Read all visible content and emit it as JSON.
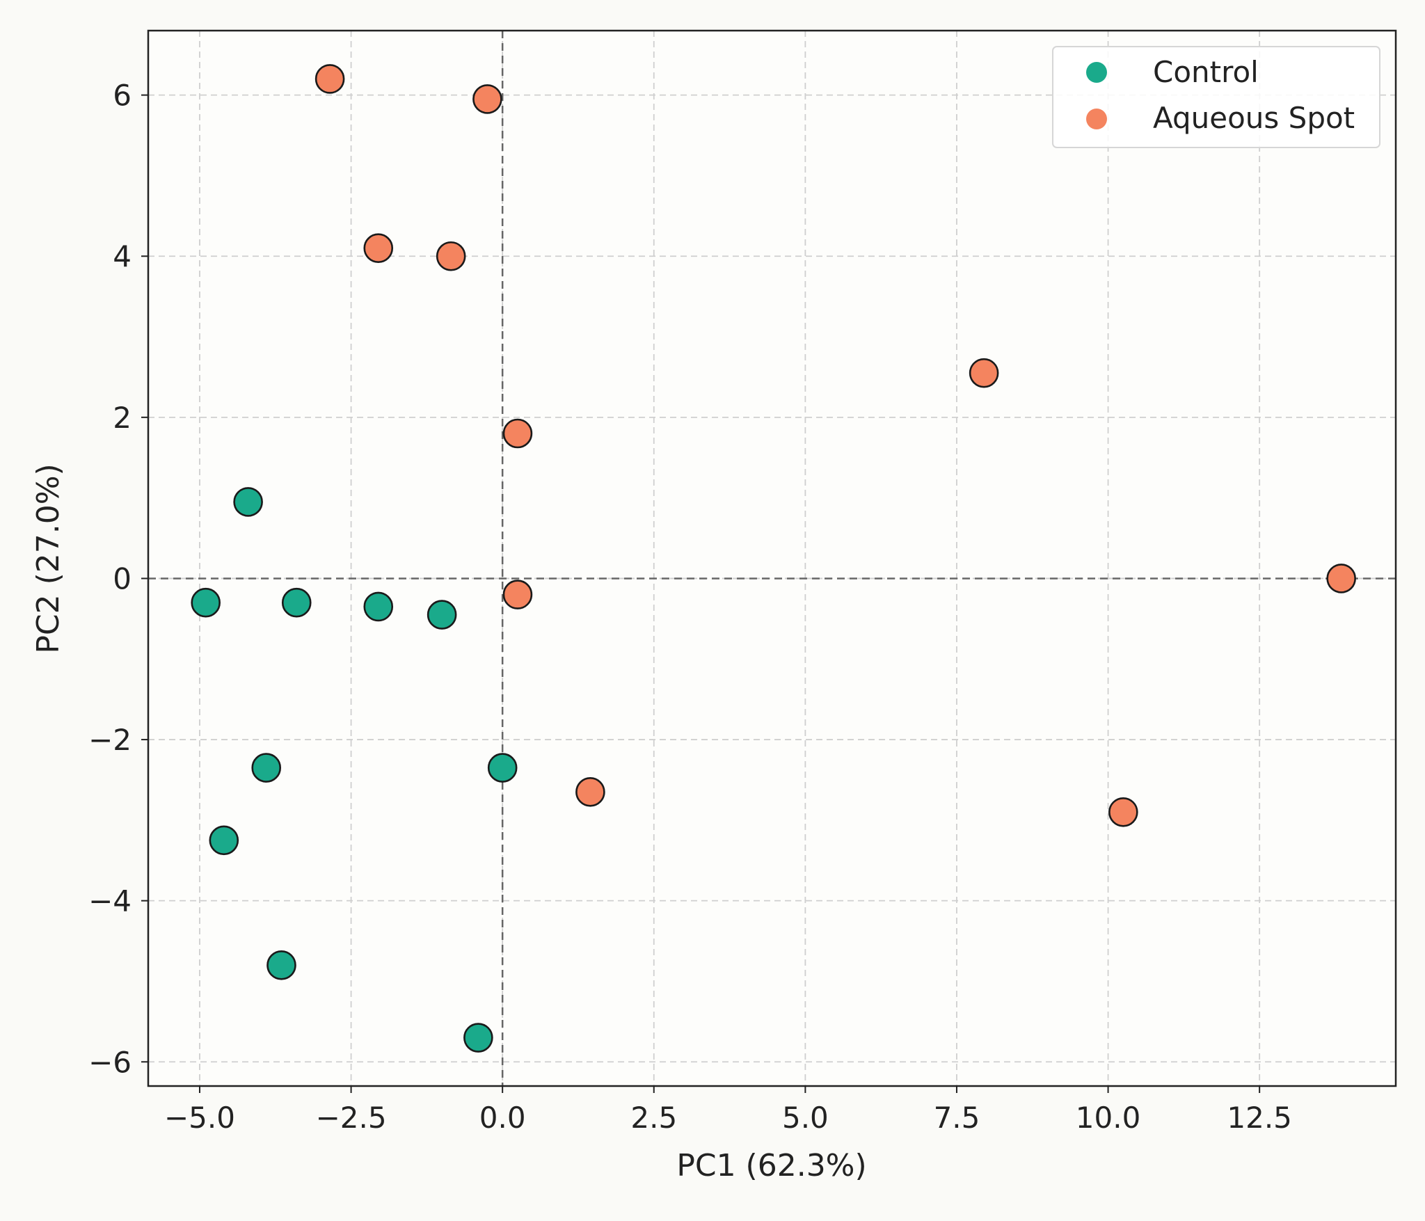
{
  "chart_data": {
    "type": "scatter",
    "xlabel": "PC1 (62.3%)",
    "ylabel": "PC2 (27.0%)",
    "xlim": [
      -5.85,
      14.75
    ],
    "ylim": [
      -6.3,
      6.8
    ],
    "xticks": [
      -5.0,
      -2.5,
      0.0,
      2.5,
      5.0,
      7.5,
      10.0,
      12.5
    ],
    "xtick_labels": [
      "−5.0",
      "−2.5",
      "0.0",
      "2.5",
      "5.0",
      "7.5",
      "10.0",
      "12.5"
    ],
    "yticks": [
      -6,
      -4,
      -2,
      0,
      2,
      4,
      6
    ],
    "ytick_labels": [
      "−6",
      "−4",
      "−2",
      "0",
      "2",
      "4",
      "6"
    ],
    "grid": true,
    "reference_lines": {
      "x": 0,
      "y": 0
    },
    "legend_position": "top-right",
    "series": [
      {
        "name": "Control",
        "color": "#1aaa8b",
        "points": [
          {
            "x": -4.2,
            "y": 0.95
          },
          {
            "x": -4.9,
            "y": -0.3
          },
          {
            "x": -3.4,
            "y": -0.3
          },
          {
            "x": -2.05,
            "y": -0.35
          },
          {
            "x": -1.0,
            "y": -0.45
          },
          {
            "x": -3.9,
            "y": -2.35
          },
          {
            "x": 0.0,
            "y": -2.35
          },
          {
            "x": -4.6,
            "y": -3.25
          },
          {
            "x": -3.65,
            "y": -4.8
          },
          {
            "x": -0.4,
            "y": -5.7
          }
        ]
      },
      {
        "name": "Aqueous Spot",
        "color": "#f4845f",
        "points": [
          {
            "x": -2.85,
            "y": 6.2
          },
          {
            "x": -0.25,
            "y": 5.95
          },
          {
            "x": -2.05,
            "y": 4.1
          },
          {
            "x": -0.85,
            "y": 4.0
          },
          {
            "x": 7.95,
            "y": 2.55
          },
          {
            "x": 0.25,
            "y": 1.8
          },
          {
            "x": 0.25,
            "y": -0.2
          },
          {
            "x": 13.85,
            "y": 0.0
          },
          {
            "x": 1.45,
            "y": -2.65
          },
          {
            "x": 10.25,
            "y": -2.9
          }
        ]
      }
    ]
  }
}
